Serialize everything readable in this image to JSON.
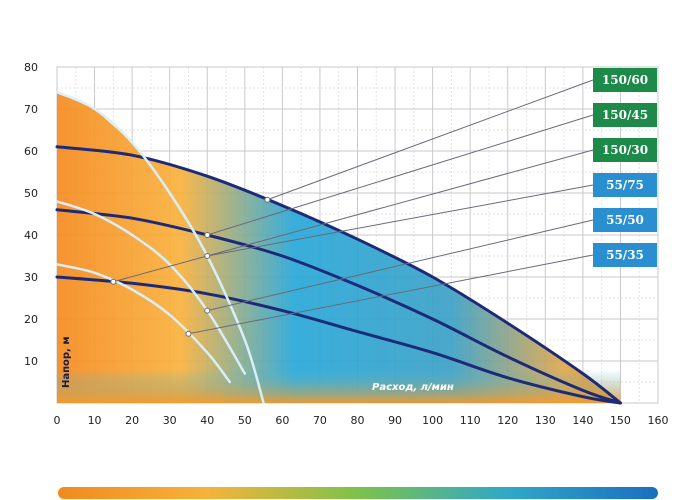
{
  "chart_data": {
    "type": "line",
    "title": "",
    "xlabel": "Расход, л/мин",
    "ylabel": "Напор, м",
    "xlim": [
      0,
      160
    ],
    "ylim": [
      0,
      80
    ],
    "x_ticks": [
      0,
      10,
      20,
      30,
      40,
      50,
      60,
      70,
      80,
      90,
      100,
      110,
      120,
      130,
      140,
      150,
      160
    ],
    "y_ticks": [
      10,
      20,
      30,
      40,
      50,
      60,
      70,
      80
    ],
    "grid": true,
    "legend": "right",
    "series": [
      {
        "name": "150/60",
        "color": "#1e8a4a",
        "x": [
          0,
          20,
          40,
          60,
          80,
          100,
          120,
          140,
          150
        ],
        "y": [
          61,
          59,
          54,
          47,
          39,
          30,
          19,
          7,
          0
        ]
      },
      {
        "name": "150/45",
        "color": "#1e8a4a",
        "x": [
          0,
          20,
          40,
          60,
          80,
          100,
          120,
          140,
          150
        ],
        "y": [
          46,
          44,
          40,
          35,
          28,
          20,
          11,
          3,
          0
        ]
      },
      {
        "name": "150/30",
        "color": "#1e8a4a",
        "x": [
          0,
          20,
          40,
          60,
          80,
          100,
          120,
          140,
          150
        ],
        "y": [
          30,
          28.5,
          26,
          22,
          17,
          12,
          6,
          1.5,
          0
        ]
      },
      {
        "name": "55/75",
        "color": "#2a8fd0",
        "x": [
          0,
          10,
          20,
          30,
          40,
          50,
          55
        ],
        "y": [
          74,
          70,
          62,
          50,
          35,
          15,
          0
        ]
      },
      {
        "name": "55/50",
        "color": "#2a8fd0",
        "x": [
          0,
          10,
          20,
          30,
          40,
          50
        ],
        "y": [
          48,
          45,
          40,
          33,
          22,
          7
        ]
      },
      {
        "name": "55/35",
        "color": "#2a8fd0",
        "x": [
          0,
          10,
          20,
          30,
          40,
          46
        ],
        "y": [
          33,
          31,
          27,
          21,
          12,
          5
        ]
      }
    ]
  }
}
